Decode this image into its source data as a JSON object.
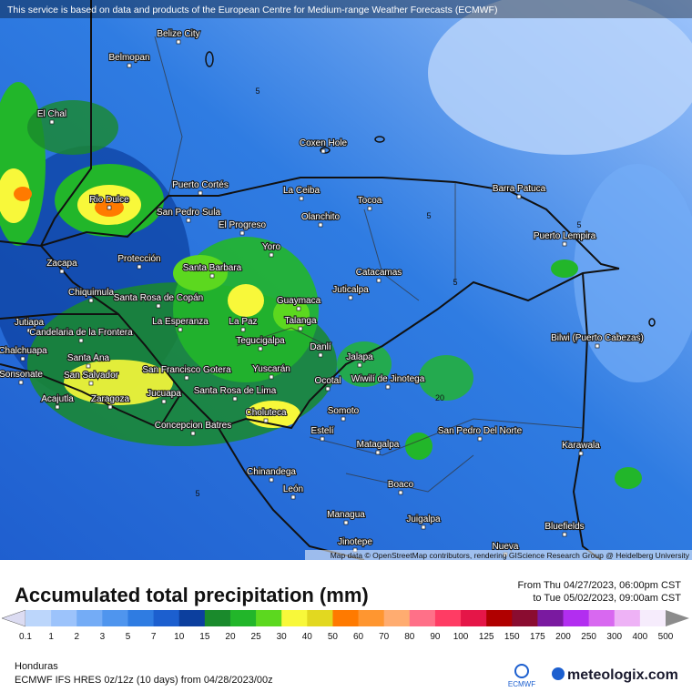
{
  "notice": "This service is based on data and products of the European Centre for Medium-range Weather Forecasts (ECMWF)",
  "cities": [
    "Belize City",
    "Belmopan",
    "El Chal",
    "Coxen Hole",
    "Puerto Cortés",
    "Rio Dulce",
    "San Pedro Sula",
    "La Ceiba",
    "Tocoa",
    "Barra Patuca",
    "El Progreso",
    "Olanchito",
    "Puerto Lempira",
    "Yoro",
    "Zacapa",
    "Protección",
    "Catacamas",
    "Santa Barbara",
    "Juticalpa",
    "Chiquimula",
    "Santa Rosa de Copán",
    "Guaymaca",
    "Talanga",
    "La Esperanza",
    "La Paz",
    "Jutiapa",
    "Candelaria de la Frontera",
    "Bilwi (Puerto Cabezas)",
    "Tegucigalpa",
    "Danlí",
    "Chalchuapa",
    "Santa Ana",
    "Jalapa",
    "San Francisco Gotera",
    "Yuscarán",
    "Sonsonate",
    "San Salvador",
    "Wiwilí de Jinotega",
    "Santa Rosa de Lima",
    "Ocotal",
    "Acajutla",
    "Zaragoza",
    "Jucuapa",
    "Somoto",
    "Choluteca",
    "Concepcion Batres",
    "Estelí",
    "San Pedro Del Norte",
    "Matagalpa",
    "Karawala",
    "Chinandega",
    "Boaco",
    "León",
    "Managua",
    "Juigalpa",
    "Bluefields",
    "Jinotepe",
    "Nueva"
  ],
  "contour_labels": [
    "5",
    "5",
    "5",
    "5",
    "5",
    "20"
  ],
  "attribution": "Map data © OpenStreetMap contributors, rendering GIScience Research Group @ Heidelberg University",
  "title": "Accumulated total precipitation (mm)",
  "period_from": "From Thu 04/27/2023, 06:00pm CST",
  "period_to": "to Tue 05/02/2023, 09:00am CST",
  "colorbar": {
    "labels": [
      0.1,
      1,
      2,
      3,
      5,
      7,
      10,
      15,
      20,
      25,
      30,
      40,
      50,
      60,
      70,
      80,
      90,
      100,
      125,
      150,
      175,
      200,
      250,
      300,
      400,
      500
    ],
    "colors": [
      "#dcdcf2",
      "#bcd6fb",
      "#9cc3fb",
      "#74acf6",
      "#4f95ee",
      "#2f7ce2",
      "#1c5fcf",
      "#0c3f9e",
      "#1a8a2c",
      "#22b62a",
      "#5cd81f",
      "#f8f83a",
      "#e2d820",
      "#ff7a00",
      "#ff9630",
      "#ffac70",
      "#ff7088",
      "#ff3c64",
      "#e51648",
      "#b00000",
      "#8a0c30",
      "#7a1aa0",
      "#b22ef0",
      "#d868f0",
      "#eeb2f6",
      "#f6ecfc",
      "#d4d4d4",
      "#8c8c8c"
    ]
  },
  "region": "Honduras",
  "model": "ECMWF IFS HRES 0z/12z (10 days) from 04/28/2023/00z",
  "ecmwf_logo": "ECMWF",
  "brand": "meteologix.com"
}
